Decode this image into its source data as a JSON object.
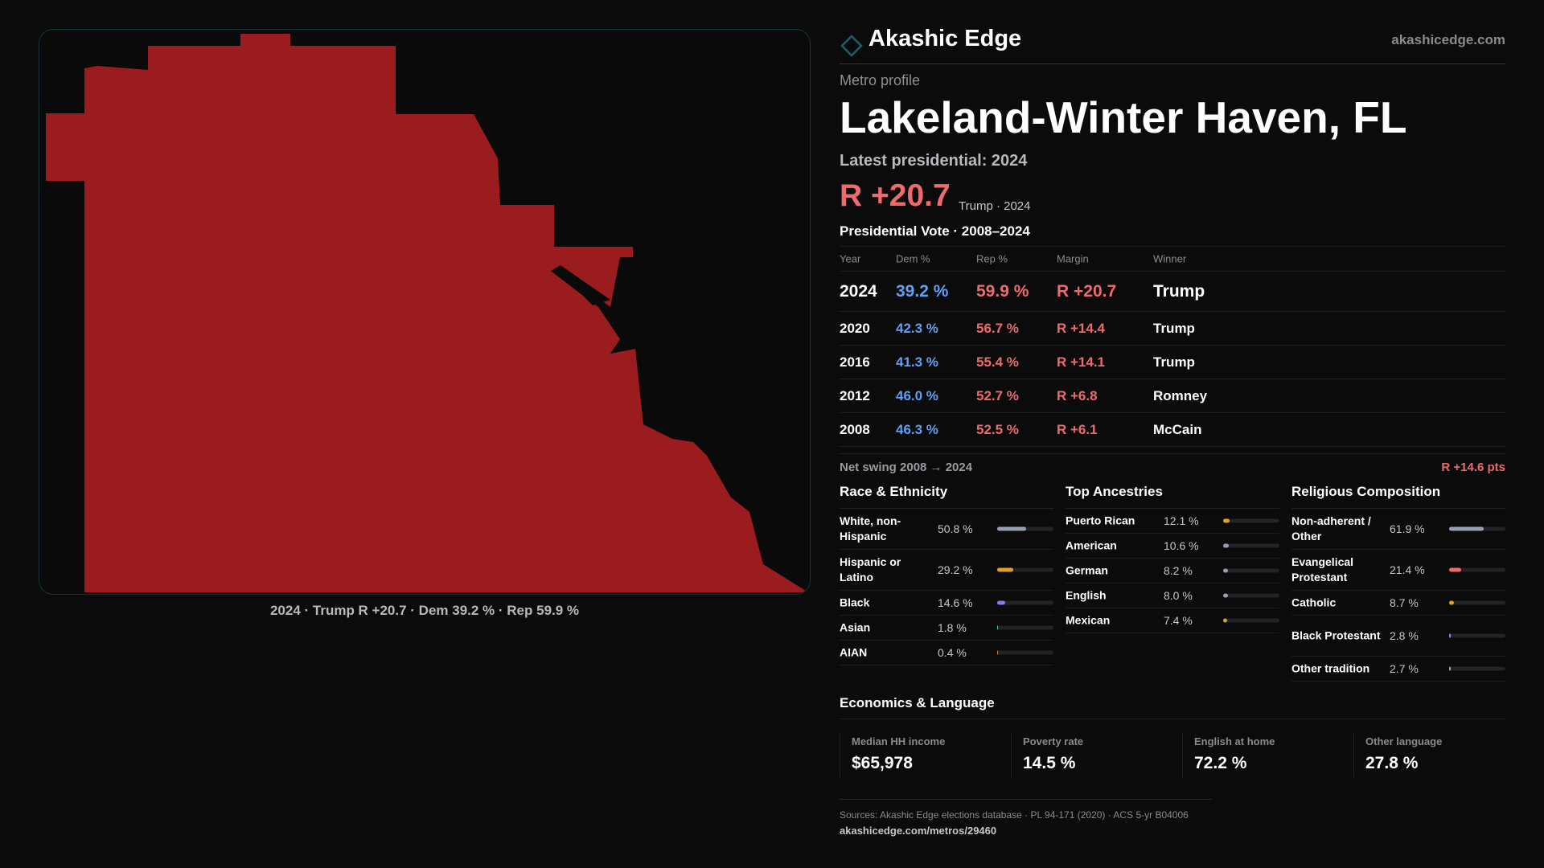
{
  "colors": {
    "background": "#0b0b0c",
    "accent_teal": "#1d5e6a",
    "republican": "#ef6b6b",
    "democrat": "#5fa0f5",
    "map_fill": "#9b1c1f"
  },
  "map": {
    "caption": "2024 · Trump R +20.7 · Dem 39.2 % · Rep 59.9 %",
    "fill_meaning": "Republican margin"
  },
  "brand": {
    "logo_icon": "diamond-outline-icon",
    "name": "Akashic Edge",
    "url": "akashicedge.com"
  },
  "profile": {
    "eyebrow": "Metro profile",
    "title": "Lakeland-Winter Haven, FL",
    "latest": "Latest presidential: 2024",
    "margin": "R +20.7",
    "margin_sub": "Trump · 2024"
  },
  "vote": {
    "title": "Presidential Vote · 2008–2024",
    "headers": {
      "year": "Year",
      "dem": "Dem %",
      "rep": "Rep %",
      "margin": "Margin",
      "winner": "Winner"
    },
    "rows": [
      {
        "year": "2024",
        "dem": "39.2 %",
        "rep": "59.9 %",
        "margin": "R +20.7",
        "winner": "Trump"
      },
      {
        "year": "2020",
        "dem": "42.3 %",
        "rep": "56.7 %",
        "margin": "R +14.4",
        "winner": "Trump"
      },
      {
        "year": "2016",
        "dem": "41.3 %",
        "rep": "55.4 %",
        "margin": "R +14.1",
        "winner": "Trump"
      },
      {
        "year": "2012",
        "dem": "46.0 %",
        "rep": "52.7 %",
        "margin": "R +6.8",
        "winner": "Romney"
      },
      {
        "year": "2008",
        "dem": "46.3 %",
        "rep": "52.5 %",
        "margin": "R +6.1",
        "winner": "McCain"
      }
    ],
    "swing_label": "Net swing 2008 → 2024",
    "swing_value": "R +14.6 pts"
  },
  "race": {
    "title": "Race & Ethnicity",
    "rows": [
      {
        "label": "White, non-Hispanic",
        "pct": "50.8 %",
        "value": 50.8,
        "color": "#9a9fb0"
      },
      {
        "label": "Hispanic or Latino",
        "pct": "29.2 %",
        "value": 29.2,
        "color": "#e0a021"
      },
      {
        "label": "Black",
        "pct": "14.6 %",
        "value": 14.6,
        "color": "#8a7cf0"
      },
      {
        "label": "Asian",
        "pct": "1.8 %",
        "value": 1.8,
        "color": "#3fc6a8"
      },
      {
        "label": "AIAN",
        "pct": "0.4 %",
        "value": 0.4,
        "color": "#e07a3a"
      }
    ]
  },
  "ancestry": {
    "title": "Top Ancestries",
    "rows": [
      {
        "label": "Puerto Rican",
        "pct": "12.1 %",
        "value": 12.1,
        "color": "#e0a021"
      },
      {
        "label": "American",
        "pct": "10.6 %",
        "value": 10.6,
        "color": "#9a9fb0"
      },
      {
        "label": "German",
        "pct": "8.2 %",
        "value": 8.2,
        "color": "#9a9fb0"
      },
      {
        "label": "English",
        "pct": "8.0 %",
        "value": 8.0,
        "color": "#9a9fb0"
      },
      {
        "label": "Mexican",
        "pct": "7.4 %",
        "value": 7.4,
        "color": "#e0a021"
      }
    ]
  },
  "religion": {
    "title": "Religious Composition",
    "rows": [
      {
        "label": "Non-adherent / Other",
        "pct": "61.9 %",
        "value": 61.9,
        "color": "#9a9fb0"
      },
      {
        "label": "Evangelical Protestant",
        "pct": "21.4 %",
        "value": 21.4,
        "color": "#ef6b6b"
      },
      {
        "label": "Catholic",
        "pct": "8.7 %",
        "value": 8.7,
        "color": "#e0a021"
      },
      {
        "label": "Black Protestant",
        "pct": "2.8 %",
        "value": 2.8,
        "color": "#8a7cf0"
      },
      {
        "label": "Other tradition",
        "pct": "2.7 %",
        "value": 2.7,
        "color": "#9a9fb0"
      }
    ]
  },
  "economics": {
    "title": "Economics & Language",
    "items": [
      {
        "label": "Median HH income",
        "value": "$65,978"
      },
      {
        "label": "Poverty rate",
        "value": "14.5 %"
      },
      {
        "label": "English at home",
        "value": "72.2 %"
      },
      {
        "label": "Other language",
        "value": "27.8 %"
      }
    ]
  },
  "footer": {
    "sources": "Sources: Akashic Edge elections database · PL 94-171 (2020) · ACS 5-yr B04006",
    "url": "akashicedge.com/metros/29460"
  }
}
